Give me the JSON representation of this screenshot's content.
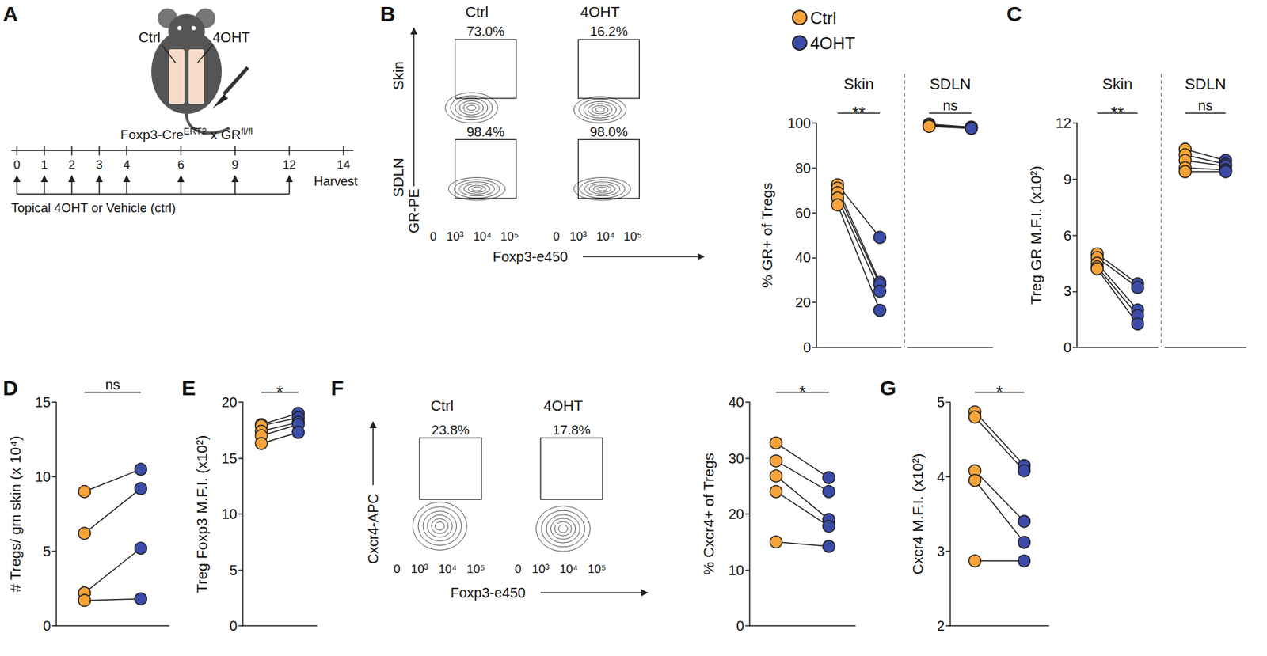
{
  "panel_letters": [
    "A",
    "B",
    "C",
    "D",
    "E",
    "F",
    "G"
  ],
  "diagram_A": {
    "mouse_labels": [
      "Ctrl",
      "4OHT"
    ],
    "genotype": [
      {
        "text": "Foxp3-Cre"
      },
      {
        "text": "ERT2",
        "sup": true
      },
      {
        "text": " x GR"
      },
      {
        "text": "fl/fl",
        "sup": true
      }
    ],
    "days": [
      0,
      1,
      2,
      3,
      4,
      6,
      9,
      12,
      14
    ],
    "treatment_days": [
      0,
      1,
      2,
      3,
      4,
      6,
      9,
      12
    ],
    "harvest_day": 14,
    "harvest_label": "Harvest",
    "treatment_label": "Topical 4OHT or Vehicle (ctrl)"
  },
  "flow_plots": [
    {
      "panel": "B",
      "columns": [
        "Ctrl",
        "4OHT"
      ],
      "rows": [
        "Skin",
        "SDLN"
      ],
      "gates": [
        [
          "73.0%",
          "16.2%"
        ],
        [
          "98.4%",
          "98.0%"
        ]
      ],
      "y_label": "GR-PE",
      "x_label": "Foxp3-e450",
      "x_ticks": [
        "0",
        "10³",
        "10⁴",
        "10⁵"
      ]
    },
    {
      "panel": "F",
      "columns": [
        "Ctrl",
        "4OHT"
      ],
      "gates": [
        [
          "23.8%",
          "17.8%"
        ]
      ],
      "y_label": "Cxcr4-APC",
      "x_label": "Foxp3-e450",
      "x_ticks": [
        "0",
        "10³",
        "10⁴",
        "10⁵"
      ]
    }
  ],
  "chart_data": [
    {
      "type": "paired_dot",
      "panel": "B",
      "ylabel": "% GR+ of Tregs",
      "ylim": [
        0,
        100
      ],
      "yticks": [
        0,
        20,
        40,
        60,
        80,
        100
      ],
      "legend": "top-left",
      "groups": [
        {
          "name": "Skin",
          "annotation": "**",
          "series": [
            {
              "name": "Ctrl",
              "color": "#F6A33A",
              "values": [
                72.5,
                71,
                69,
                66.5,
                63.5
              ]
            },
            {
              "name": "4OHT",
              "color": "#3B4BA8",
              "values": [
                49,
                29,
                28,
                25,
                16.5
              ]
            }
          ]
        },
        {
          "name": "SDLN",
          "annotation": "ns",
          "series": [
            {
              "name": "Ctrl",
              "color": "#F6A33A",
              "values": [
                99.5,
                99.2,
                99,
                98.8,
                98.5
              ]
            },
            {
              "name": "4OHT",
              "color": "#3B4BA8",
              "values": [
                98.2,
                98,
                98,
                97.8,
                97.6
              ]
            }
          ]
        }
      ]
    },
    {
      "type": "paired_dot",
      "panel": "C",
      "ylabel": "Treg GR M.F.I. (x10²)",
      "ylim": [
        0,
        12
      ],
      "yticks": [
        0,
        3,
        6,
        9,
        12
      ],
      "groups": [
        {
          "name": "Skin",
          "annotation": "**",
          "series": [
            {
              "name": "Ctrl",
              "color": "#F6A33A",
              "values": [
                5.0,
                4.8,
                4.5,
                4.3,
                4.2
              ]
            },
            {
              "name": "4OHT",
              "color": "#3B4BA8",
              "values": [
                3.4,
                3.2,
                2.0,
                1.7,
                1.25
              ]
            }
          ]
        },
        {
          "name": "SDLN",
          "annotation": "ns",
          "series": [
            {
              "name": "Ctrl",
              "color": "#F6A33A",
              "values": [
                10.6,
                10.3,
                10.0,
                9.6,
                9.4
              ]
            },
            {
              "name": "4OHT",
              "color": "#3B4BA8",
              "values": [
                10.0,
                9.8,
                9.7,
                9.5,
                9.4
              ]
            }
          ]
        }
      ]
    },
    {
      "type": "paired_dot",
      "panel": "D",
      "ylabel": "# Tregs/ gm skin (x 10⁴)",
      "ylim": [
        0,
        15
      ],
      "yticks": [
        0,
        5,
        10,
        15
      ],
      "groups": [
        {
          "annotation": "ns",
          "series": [
            {
              "name": "Ctrl",
              "color": "#F6A33A",
              "values": [
                9.0,
                6.2,
                2.2,
                1.7
              ]
            },
            {
              "name": "4OHT",
              "color": "#3B4BA8",
              "values": [
                10.5,
                9.2,
                5.2,
                1.8
              ]
            }
          ]
        }
      ]
    },
    {
      "type": "paired_dot",
      "panel": "E",
      "ylabel": "Treg Foxp3 M.F.I. (x10²)",
      "ylim": [
        0,
        20
      ],
      "yticks": [
        0,
        5,
        10,
        15,
        20
      ],
      "groups": [
        {
          "annotation": "*",
          "series": [
            {
              "name": "Ctrl",
              "color": "#F6A33A",
              "values": [
                18.0,
                17.9,
                17.4,
                17.0,
                16.3
              ]
            },
            {
              "name": "4OHT",
              "color": "#3B4BA8",
              "values": [
                19.0,
                18.6,
                18.2,
                18.0,
                17.3
              ]
            }
          ]
        }
      ]
    },
    {
      "type": "paired_dot",
      "panel": "F",
      "ylabel": "% Cxcr4+ of Tregs",
      "ylim": [
        0,
        40
      ],
      "yticks": [
        0,
        10,
        20,
        30,
        40
      ],
      "groups": [
        {
          "annotation": "*",
          "series": [
            {
              "name": "Ctrl",
              "color": "#F6A33A",
              "values": [
                32.7,
                29.5,
                26.8,
                24.0,
                15.0
              ]
            },
            {
              "name": "4OHT",
              "color": "#3B4BA8",
              "values": [
                26.5,
                24.0,
                19.0,
                17.8,
                14.2
              ]
            }
          ]
        }
      ]
    },
    {
      "type": "paired_dot",
      "panel": "G",
      "ylabel": "Cxcr4 M.F.I. (x10²)",
      "ylim": [
        2,
        5
      ],
      "yticks": [
        2,
        3,
        4,
        5
      ],
      "groups": [
        {
          "annotation": "*",
          "series": [
            {
              "name": "Ctrl",
              "color": "#F6A33A",
              "values": [
                4.87,
                4.8,
                4.08,
                3.95,
                2.87
              ]
            },
            {
              "name": "4OHT",
              "color": "#3B4BA8",
              "values": [
                4.15,
                4.08,
                3.4,
                3.12,
                2.87
              ]
            }
          ]
        }
      ]
    }
  ]
}
